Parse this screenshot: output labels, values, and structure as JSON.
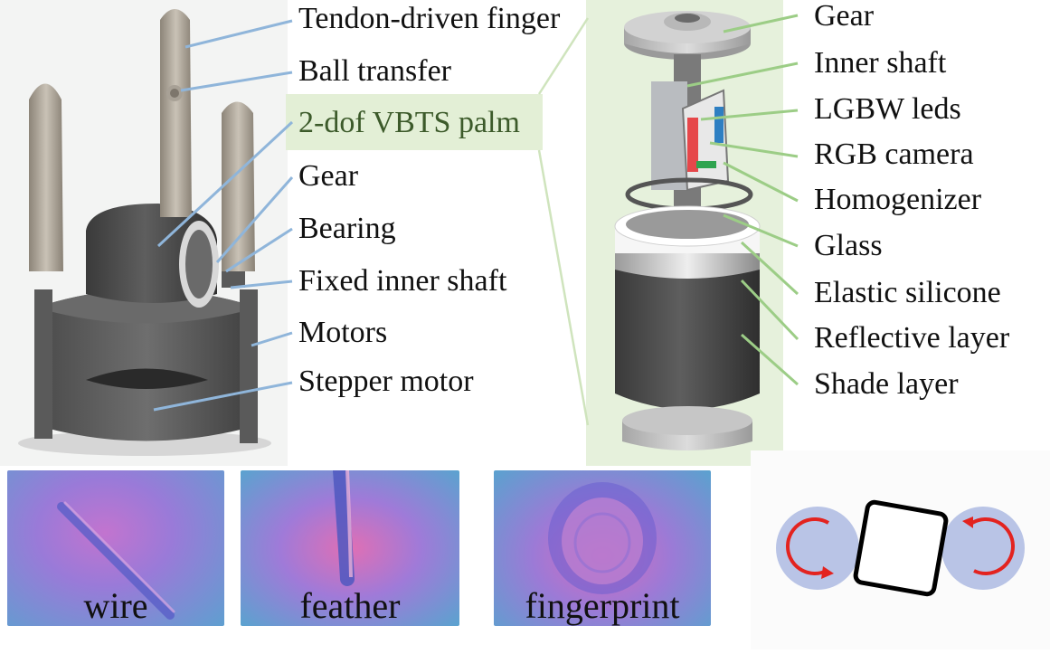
{
  "left_labels": {
    "tendon_finger": "Tendon-driven finger",
    "ball_transfer": "Ball transfer",
    "palm": "2-dof VBTS palm",
    "gear": "Gear",
    "bearing": "Bearing",
    "fixed_shaft": "Fixed inner shaft",
    "motors": "Motors",
    "stepper": "Stepper motor"
  },
  "right_labels": {
    "gear": "Gear",
    "inner_shaft": "Inner shaft",
    "leds": "LGBW leds",
    "camera": "RGB camera",
    "homogenizer": "Homogenizer",
    "glass": "Glass",
    "silicone": "Elastic silicone",
    "reflective": "Reflective layer",
    "shade": "Shade layer"
  },
  "tactile_images": [
    {
      "caption": "wire"
    },
    {
      "caption": "feather"
    },
    {
      "caption": "fingerprint"
    }
  ],
  "colors": {
    "leader_blue": "#8fb5da",
    "leader_green": "#9ccd86",
    "arrow_red": "#e3231f",
    "roller_fill": "#b9c4e6"
  }
}
